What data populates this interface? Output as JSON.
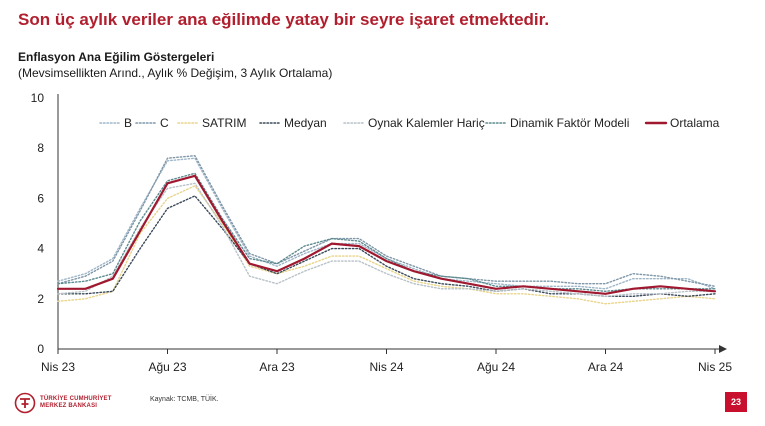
{
  "slide": {
    "headline": "Son üç aylık veriler ana eğilimde yatay bir seyre işaret etmektedir.",
    "source": "Kaynak: TCMB, TÜİK.",
    "page_number": "23",
    "logo_line1": "TÜRKİYE CUMHURİYET",
    "logo_line2": "MERKEZ BANKASI",
    "brand_color": "#b11f2e"
  },
  "chart_data": {
    "type": "line",
    "title": "Enflasyon Ana Eğilim Göstergeleri",
    "subtitle": "(Mevsimsellikten Arınd., Aylık % Değişim, 3 Aylık Ortalama)",
    "xlabel": "",
    "ylabel": "",
    "ylim": [
      0,
      10
    ],
    "yticks": [
      0,
      2,
      4,
      6,
      8,
      10
    ],
    "x": [
      "Nis 23",
      "May 23",
      "Haz 23",
      "Tem 23",
      "Ağu 23",
      "Eyl 23",
      "Eki 23",
      "Kas 23",
      "Ara 23",
      "Oca 24",
      "Şub 24",
      "Mar 24",
      "Nis 24",
      "May 24",
      "Haz 24",
      "Tem 24",
      "Ağu 24",
      "Eyl 24",
      "Eki 24",
      "Kas 24",
      "Ara 24",
      "Oca 25",
      "Şub 25",
      "Mar 25",
      "Nis 25"
    ],
    "xtick_labels": [
      "Nis 23",
      "Ağu 23",
      "Ara 23",
      "Nis 24",
      "Ağu 24",
      "Ara 24",
      "Nis 25"
    ],
    "xtick_every": 4,
    "grid": false,
    "legend_position": "top",
    "series": [
      {
        "name": "B",
        "color": "#9fb6c8",
        "style": "dotted",
        "values": [
          2.7,
          3.0,
          3.6,
          5.6,
          7.5,
          7.6,
          5.6,
          3.7,
          3.3,
          3.8,
          4.2,
          4.2,
          3.6,
          3.2,
          2.8,
          2.7,
          2.6,
          2.5,
          2.5,
          2.5,
          2.4,
          2.8,
          2.8,
          2.8,
          2.4
        ]
      },
      {
        "name": "C",
        "color": "#7f97a8",
        "style": "dotted",
        "values": [
          2.6,
          2.9,
          3.5,
          5.5,
          7.6,
          7.7,
          5.7,
          3.8,
          3.4,
          3.9,
          4.4,
          4.4,
          3.7,
          3.3,
          2.9,
          2.8,
          2.7,
          2.7,
          2.7,
          2.6,
          2.6,
          3.0,
          2.9,
          2.7,
          2.5
        ]
      },
      {
        "name": "SATRIM",
        "color": "#e8d48a",
        "style": "dotted",
        "values": [
          1.9,
          2.0,
          2.3,
          4.6,
          6.0,
          6.5,
          5.0,
          3.3,
          3.0,
          3.3,
          3.7,
          3.7,
          3.2,
          2.7,
          2.5,
          2.4,
          2.2,
          2.2,
          2.1,
          2.0,
          1.8,
          1.9,
          2.0,
          2.1,
          2.0
        ]
      },
      {
        "name": "Medyan",
        "color": "#3b4a5a",
        "style": "dotted",
        "values": [
          2.2,
          2.2,
          2.3,
          4.0,
          5.6,
          6.1,
          4.8,
          3.4,
          3.0,
          3.5,
          4.0,
          4.0,
          3.3,
          2.8,
          2.6,
          2.5,
          2.3,
          2.4,
          2.2,
          2.2,
          2.1,
          2.1,
          2.2,
          2.1,
          2.2
        ]
      },
      {
        "name": "Oynak Kalemler Hariç",
        "color": "#b8c2c8",
        "style": "dotted",
        "values": [
          2.2,
          2.3,
          2.9,
          4.8,
          6.4,
          6.6,
          4.9,
          2.9,
          2.6,
          3.1,
          3.5,
          3.5,
          3.0,
          2.6,
          2.4,
          2.4,
          2.3,
          2.4,
          2.3,
          2.2,
          2.1,
          2.2,
          2.2,
          2.3,
          2.3
        ]
      },
      {
        "name": "Dinamik Faktör Modeli",
        "color": "#5c8a8e",
        "style": "dotted",
        "values": [
          2.6,
          2.7,
          3.0,
          5.1,
          6.7,
          7.0,
          5.2,
          3.6,
          3.4,
          4.1,
          4.4,
          4.3,
          3.6,
          3.1,
          2.9,
          2.8,
          2.5,
          2.5,
          2.4,
          2.4,
          2.3,
          2.4,
          2.4,
          2.4,
          2.4
        ]
      },
      {
        "name": "Ortalama",
        "color": "#a0182f",
        "style": "solid",
        "values": [
          2.4,
          2.4,
          2.8,
          4.7,
          6.6,
          6.9,
          5.1,
          3.4,
          3.1,
          3.6,
          4.2,
          4.1,
          3.5,
          3.1,
          2.8,
          2.6,
          2.4,
          2.5,
          2.4,
          2.3,
          2.2,
          2.4,
          2.5,
          2.4,
          2.3
        ]
      }
    ]
  }
}
